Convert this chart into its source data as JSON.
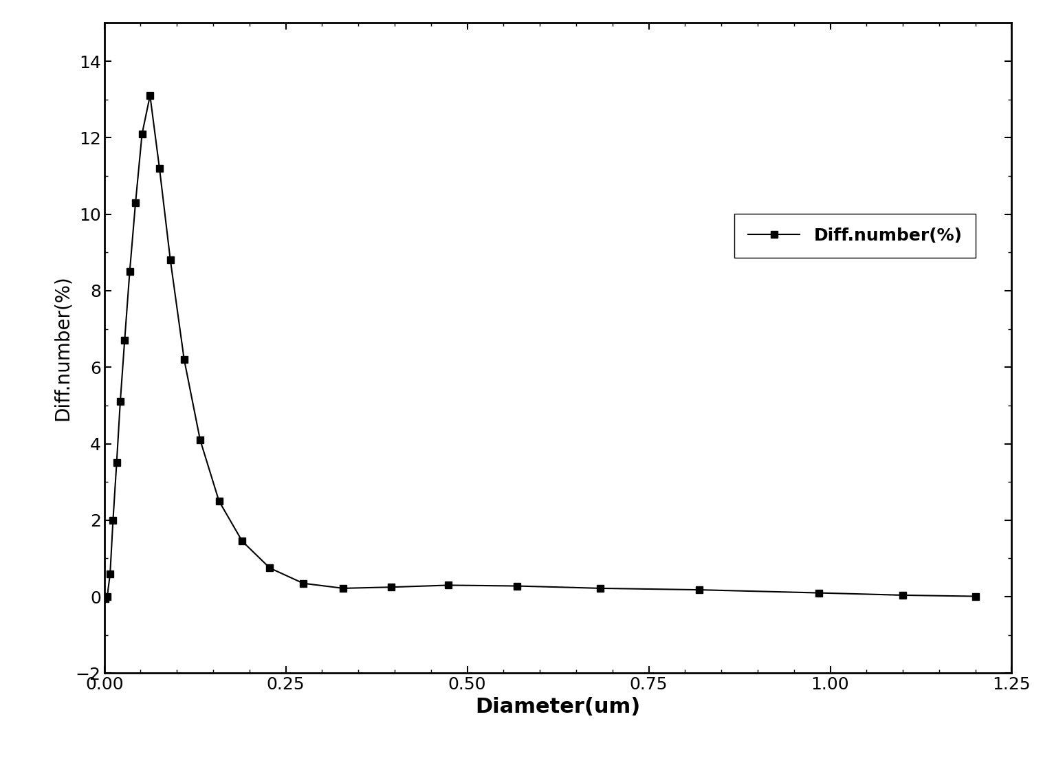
{
  "x": [
    0.001,
    0.004,
    0.008,
    0.012,
    0.017,
    0.022,
    0.028,
    0.035,
    0.043,
    0.052,
    0.063,
    0.076,
    0.091,
    0.11,
    0.132,
    0.158,
    0.19,
    0.228,
    0.274,
    0.329,
    0.395,
    0.474,
    0.569,
    0.683,
    0.82,
    0.984,
    1.1,
    1.2
  ],
  "y": [
    -0.05,
    0.0,
    0.6,
    2.0,
    3.5,
    5.1,
    6.7,
    8.5,
    10.3,
    12.1,
    13.1,
    11.2,
    8.8,
    6.2,
    4.1,
    2.5,
    1.45,
    0.75,
    0.35,
    0.22,
    0.25,
    0.3,
    0.28,
    0.22,
    0.18,
    0.1,
    0.04,
    0.01
  ],
  "xlabel": "Diameter(um)",
  "ylabel": "Diff.number(%)",
  "legend_label": "Diff.number(%)",
  "xlim": [
    0.0,
    1.25
  ],
  "ylim": [
    -2,
    15
  ],
  "xticks": [
    0.0,
    0.25,
    0.5,
    0.75,
    1.0,
    1.25
  ],
  "yticks": [
    -2,
    0,
    2,
    4,
    6,
    8,
    10,
    12,
    14
  ],
  "line_color": "#000000",
  "marker": "s",
  "marker_size": 7,
  "line_width": 1.5,
  "xlabel_fontsize": 22,
  "ylabel_fontsize": 20,
  "tick_labelsize": 18,
  "legend_fontsize": 18,
  "background_color": "#ffffff"
}
